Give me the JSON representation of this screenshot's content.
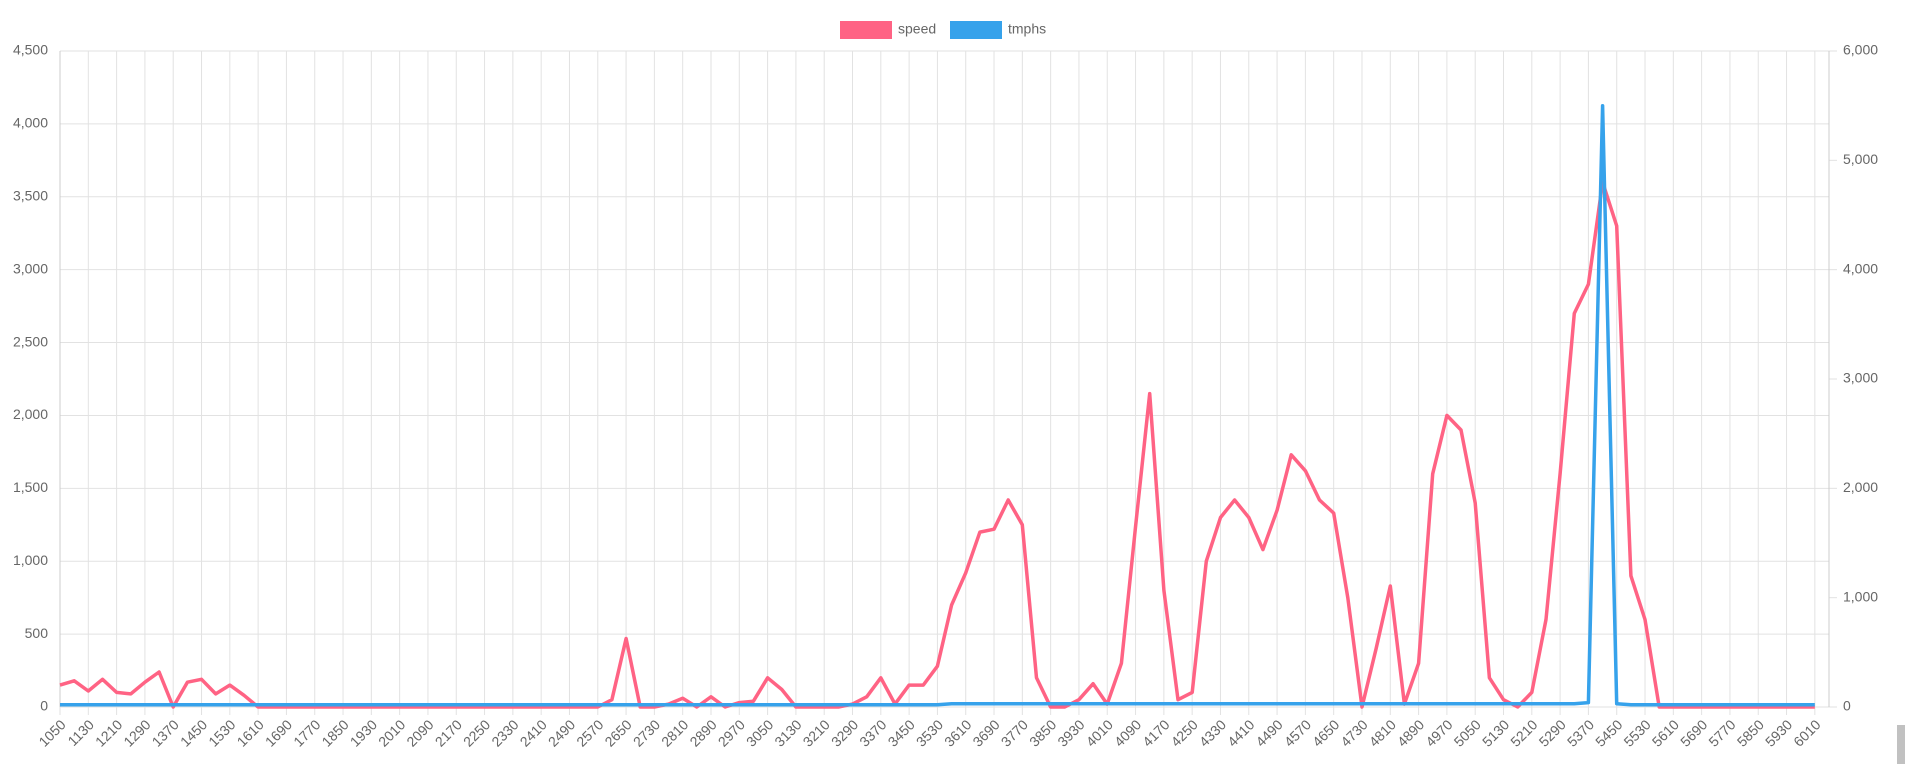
{
  "chart_data": {
    "type": "line",
    "x": [
      1050,
      1090,
      1130,
      1170,
      1210,
      1250,
      1290,
      1330,
      1370,
      1410,
      1450,
      1490,
      1530,
      1570,
      1610,
      1650,
      1690,
      1730,
      1770,
      1810,
      1850,
      1890,
      1930,
      1970,
      2010,
      2050,
      2090,
      2130,
      2170,
      2210,
      2250,
      2290,
      2330,
      2370,
      2410,
      2450,
      2490,
      2530,
      2570,
      2610,
      2650,
      2690,
      2730,
      2770,
      2810,
      2850,
      2890,
      2930,
      2970,
      3010,
      3050,
      3090,
      3130,
      3170,
      3210,
      3250,
      3290,
      3330,
      3370,
      3410,
      3450,
      3490,
      3530,
      3570,
      3610,
      3650,
      3690,
      3730,
      3770,
      3810,
      3850,
      3890,
      3930,
      3970,
      4010,
      4050,
      4090,
      4130,
      4170,
      4210,
      4250,
      4290,
      4330,
      4370,
      4410,
      4450,
      4490,
      4530,
      4570,
      4610,
      4650,
      4690,
      4730,
      4770,
      4810,
      4850,
      4890,
      4930,
      4970,
      5010,
      5050,
      5090,
      5130,
      5170,
      5210,
      5250,
      5290,
      5330,
      5370,
      5410,
      5450,
      5490,
      5530,
      5570,
      5610,
      5650,
      5690,
      5730,
      5770,
      5810,
      5850,
      5890,
      5930,
      5970,
      6010
    ],
    "series": [
      {
        "name": "speed",
        "color": "#ff6384",
        "values": [
          150,
          180,
          110,
          190,
          100,
          90,
          170,
          240,
          0,
          170,
          190,
          90,
          150,
          80,
          0,
          0,
          0,
          0,
          0,
          0,
          0,
          0,
          0,
          0,
          0,
          0,
          0,
          0,
          0,
          0,
          0,
          0,
          0,
          0,
          0,
          0,
          0,
          0,
          0,
          50,
          470,
          0,
          0,
          20,
          60,
          0,
          70,
          0,
          30,
          40,
          200,
          120,
          0,
          0,
          0,
          0,
          20,
          70,
          200,
          20,
          150,
          150,
          280,
          700,
          920,
          1200,
          1220,
          1420,
          1250,
          200,
          0,
          0,
          50,
          160,
          20,
          300,
          1240,
          2150,
          800,
          50,
          100,
          1000,
          1300,
          1420,
          1300,
          1080,
          1350,
          1730,
          1620,
          1420,
          1330,
          750,
          0,
          400,
          830,
          20,
          300,
          1600,
          2000,
          1900,
          1400,
          200,
          50,
          0,
          100,
          600,
          1600,
          2700,
          2900,
          3600,
          3300,
          900,
          600,
          0,
          0,
          0,
          0,
          0,
          0,
          0,
          0,
          0,
          0,
          0,
          0
        ]
      },
      {
        "name": "tmphs",
        "color": "#36a2eb",
        "axis": "y2",
        "values": [
          20,
          20,
          20,
          20,
          20,
          20,
          20,
          20,
          20,
          20,
          20,
          20,
          20,
          20,
          20,
          20,
          20,
          20,
          20,
          20,
          20,
          20,
          20,
          20,
          20,
          20,
          20,
          20,
          20,
          20,
          20,
          20,
          20,
          20,
          20,
          20,
          20,
          20,
          20,
          20,
          20,
          20,
          20,
          20,
          20,
          20,
          20,
          20,
          20,
          20,
          20,
          20,
          20,
          20,
          20,
          20,
          20,
          20,
          20,
          20,
          20,
          20,
          20,
          30,
          30,
          30,
          30,
          30,
          30,
          30,
          30,
          30,
          30,
          30,
          30,
          30,
          30,
          30,
          30,
          30,
          30,
          30,
          30,
          30,
          30,
          30,
          30,
          30,
          30,
          30,
          30,
          30,
          30,
          30,
          30,
          30,
          30,
          30,
          30,
          30,
          30,
          30,
          30,
          30,
          30,
          30,
          30,
          30,
          40,
          5500,
          30,
          20,
          20,
          20,
          20,
          20,
          20,
          20,
          20,
          20,
          20,
          20,
          20,
          20,
          20
        ]
      }
    ],
    "xlim": [
      1050,
      6050
    ],
    "xticks": [
      1050,
      1130,
      1210,
      1290,
      1370,
      1450,
      1530,
      1610,
      1690,
      1770,
      1850,
      1930,
      2010,
      2090,
      2170,
      2250,
      2330,
      2410,
      2490,
      2570,
      2650,
      2730,
      2810,
      2890,
      2970,
      3050,
      3130,
      3210,
      3290,
      3370,
      3450,
      3530,
      3610,
      3690,
      3770,
      3850,
      3930,
      4010,
      4090,
      4170,
      4250,
      4330,
      4410,
      4490,
      4570,
      4650,
      4730,
      4810,
      4890,
      4970,
      5050,
      5130,
      5210,
      5290,
      5370,
      5450,
      5530,
      5610,
      5690,
      5770,
      5850,
      5930,
      6010
    ],
    "ylim": [
      0,
      4500
    ],
    "yticks": [
      0,
      500,
      {
        "value": 1000,
        "label": "1,000"
      },
      {
        "value": 1500,
        "label": "1,500"
      },
      {
        "value": 2000,
        "label": "2,000"
      },
      {
        "value": 2500,
        "label": "2,500"
      },
      {
        "value": 3000,
        "label": "3,000"
      },
      {
        "value": 3500,
        "label": "3,500"
      },
      {
        "value": 4000,
        "label": "4,000"
      },
      {
        "value": 4500,
        "label": "4,500"
      }
    ],
    "y2lim": [
      0,
      6000
    ],
    "y2ticks": [
      0,
      {
        "value": 1000,
        "label": "1,000"
      },
      {
        "value": 2000,
        "label": "2,000"
      },
      {
        "value": 3000,
        "label": "3,000"
      },
      {
        "value": 4000,
        "label": "4,000"
      },
      {
        "value": 5000,
        "label": "5,000"
      },
      {
        "value": 6000,
        "label": "6,000"
      }
    ],
    "grid": true,
    "legend": "top"
  }
}
